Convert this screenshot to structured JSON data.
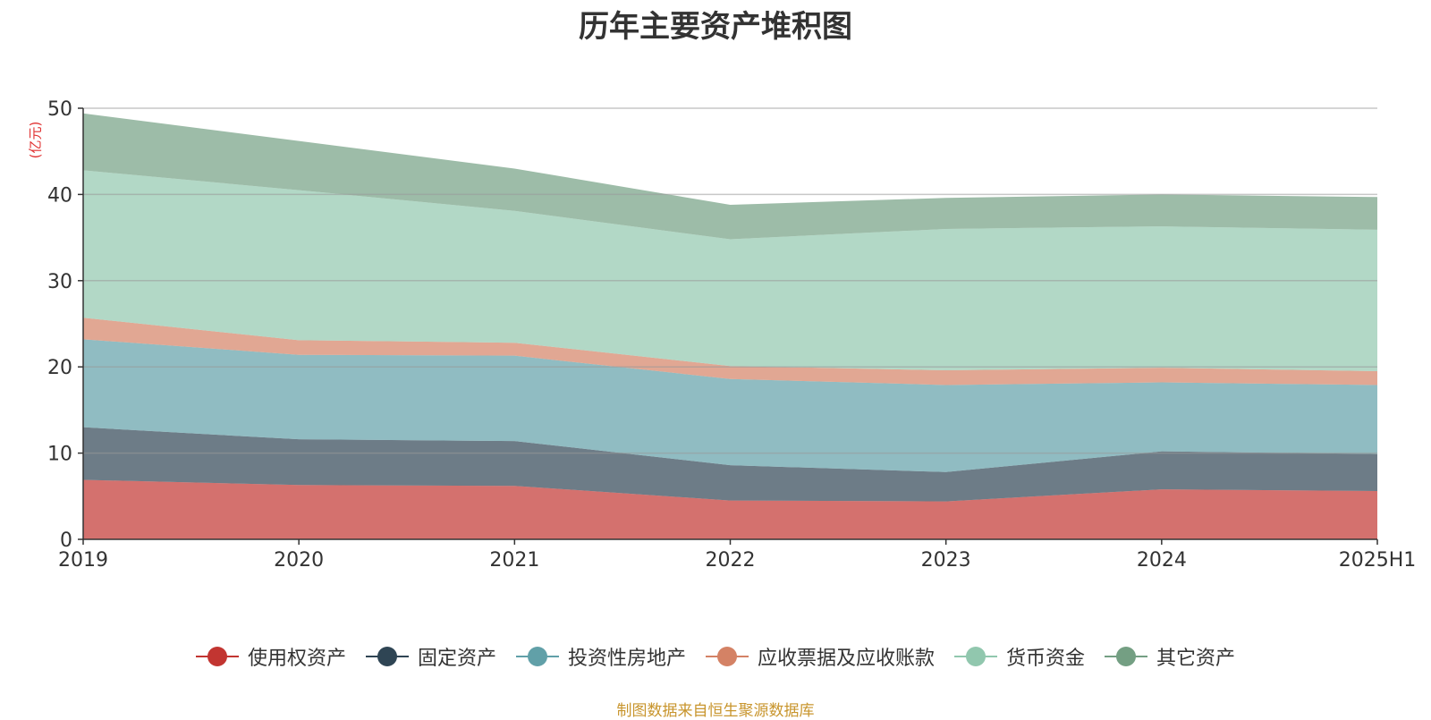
{
  "chart_data": {
    "type": "area",
    "stacked": true,
    "title": "历年主要资产堆积图",
    "unit_label": "(亿元)",
    "categories": [
      "2019",
      "2020",
      "2021",
      "2022",
      "2023",
      "2024",
      "2025H1"
    ],
    "ylim": [
      0,
      50
    ],
    "yticks": [
      0,
      10,
      20,
      30,
      40,
      50
    ],
    "grid": true,
    "legend_position": "bottom",
    "series": [
      {
        "name": "使用权资产",
        "color": "#c23531",
        "values": [
          6.9,
          6.3,
          6.2,
          4.5,
          4.4,
          5.8,
          5.6
        ]
      },
      {
        "name": "固定资产",
        "color": "#2f4554",
        "values": [
          6.1,
          5.3,
          5.2,
          4.1,
          3.4,
          4.4,
          4.3
        ]
      },
      {
        "name": "投资性房地产",
        "color": "#61a0a8",
        "values": [
          10.2,
          9.8,
          9.9,
          10.0,
          10.1,
          8.0,
          8.0
        ]
      },
      {
        "name": "应收票据及应收账款",
        "color": "#d48265",
        "values": [
          2.5,
          1.7,
          1.5,
          1.5,
          1.7,
          1.7,
          1.6
        ]
      },
      {
        "name": "货币资金",
        "color": "#91c7ae",
        "values": [
          17.1,
          17.4,
          15.3,
          14.7,
          16.4,
          16.4,
          16.4
        ]
      },
      {
        "name": "其它资产",
        "color": "#749f83",
        "values": [
          6.6,
          5.7,
          4.9,
          4.0,
          3.6,
          3.7,
          3.8
        ]
      }
    ]
  },
  "source": "制图数据来自恒生聚源数据库"
}
